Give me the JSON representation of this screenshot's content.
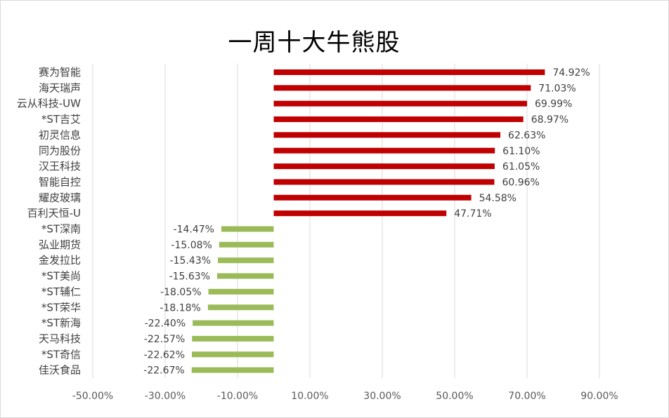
{
  "chart_data": {
    "type": "bar",
    "orientation": "horizontal",
    "title": "一周十大牛熊股",
    "categories": [
      "赛为智能",
      "海天瑞声",
      "云从科技-UW",
      "*ST吉艾",
      "初灵信息",
      "同为股份",
      "汉王科技",
      "智能自控",
      "耀皮玻璃",
      "百利天恒-U",
      "*ST深南",
      "弘业期货",
      "金发拉比",
      "*ST美尚",
      "*ST辅仁",
      "*ST荣华",
      "*ST新海",
      "天马科技",
      "*ST奇信",
      "佳沃食品"
    ],
    "values": [
      74.92,
      71.03,
      69.99,
      68.97,
      62.63,
      61.1,
      61.05,
      60.96,
      54.58,
      47.71,
      -14.47,
      -15.08,
      -15.43,
      -15.63,
      -18.05,
      -18.18,
      -22.4,
      -22.57,
      -22.62,
      -22.67
    ],
    "data_labels": [
      "74.92%",
      "71.03%",
      "69.99%",
      "68.97%",
      "62.63%",
      "61.10%",
      "61.05%",
      "60.96%",
      "54.58%",
      "47.71%",
      "-14.47%",
      "-15.08%",
      "-15.43%",
      "-15.63%",
      "-18.05%",
      "-18.18%",
      "-22.40%",
      "-22.57%",
      "-22.62%",
      "-22.67%"
    ],
    "x_ticks": [
      -50,
      -30,
      -10,
      10,
      30,
      50,
      70,
      90
    ],
    "x_tick_labels": [
      "-50.00%",
      "-30.00%",
      "-10.00%",
      "10.00%",
      "30.00%",
      "50.00%",
      "70.00%",
      "90.00%"
    ],
    "xlim": [
      -50,
      90
    ],
    "unit": "%",
    "grid": true,
    "legend": "none",
    "colors": {
      "positive": "#c00000",
      "negative": "#9bbb59",
      "grid": "#d9d9d9"
    }
  }
}
